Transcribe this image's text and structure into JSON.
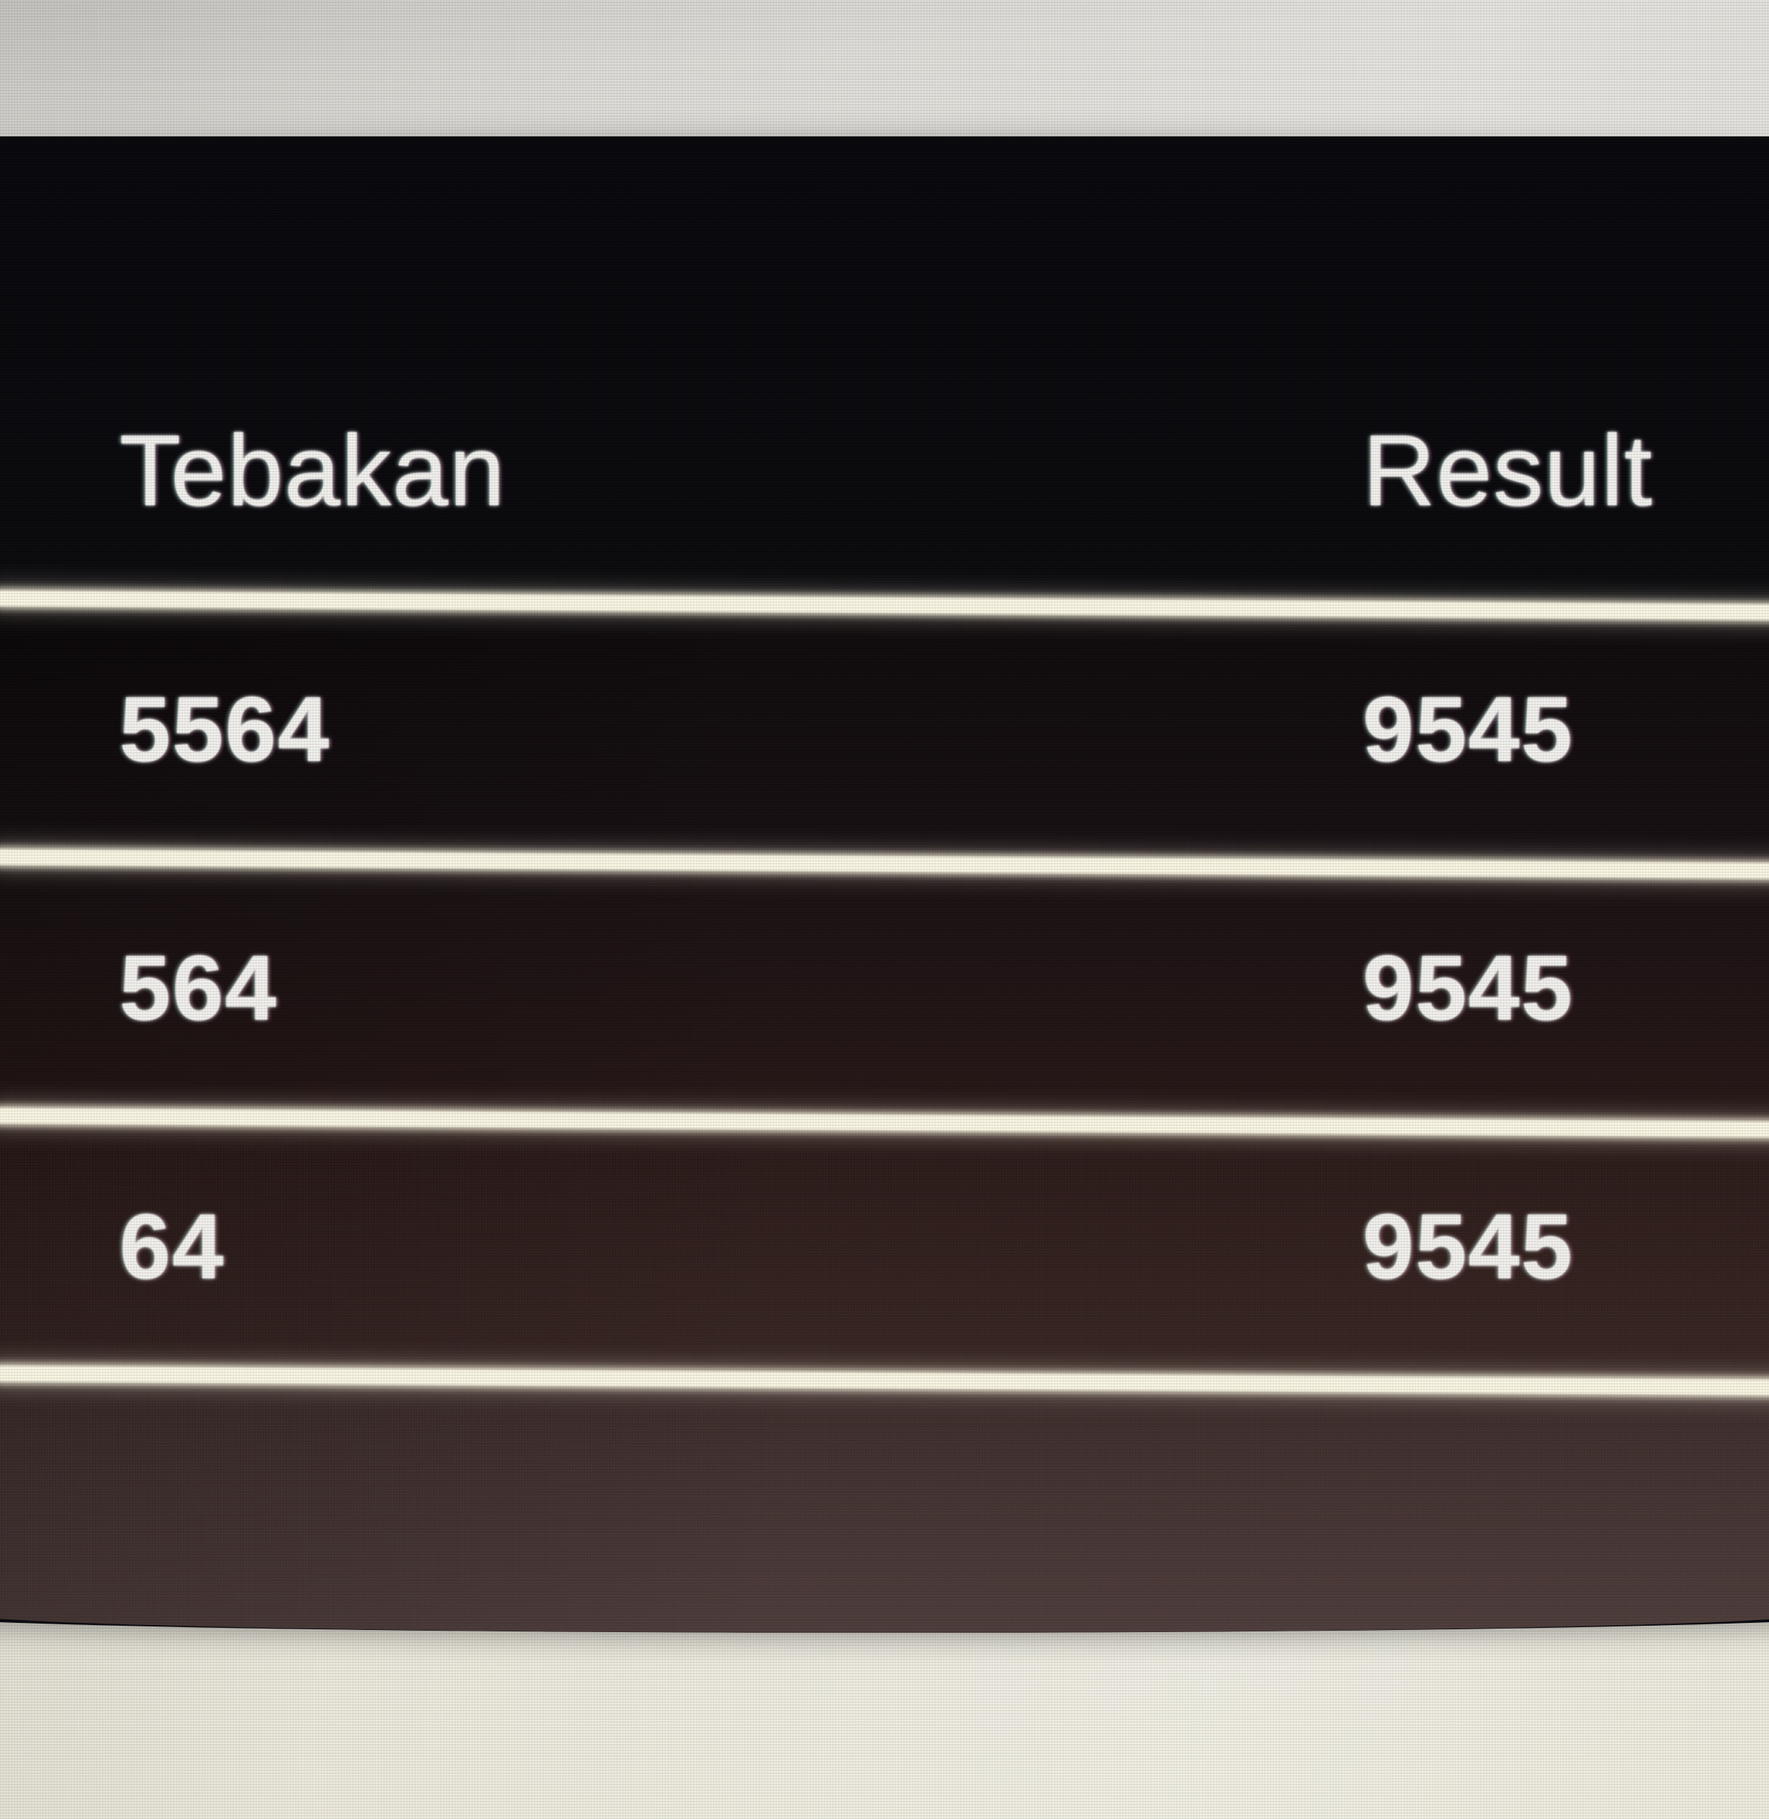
{
  "table": {
    "header": {
      "guess_label": "Tebakan",
      "result_label": "Result"
    },
    "rows": [
      {
        "guess": "5564",
        "result": "9545"
      },
      {
        "guess": "564",
        "result": "9545"
      },
      {
        "guess": "64",
        "result": "9545"
      },
      {
        "guess": "",
        "result": ""
      }
    ]
  },
  "colors": {
    "photo_top": "#d2d0cc",
    "photo_bottom": "#ece9db",
    "panel_bg": "#0a0a10",
    "row1_top": "#0e0a0c",
    "row1_bottom": "#181013",
    "row2_top": "#1a1113",
    "row2_bottom": "#271817",
    "row3_top": "#291917",
    "row3_bottom": "#382623",
    "row4_top": "#3b2b29",
    "row4_bottom": "#4d3c3a",
    "divider": "#f8f4e2",
    "text": "#f0efeb"
  }
}
